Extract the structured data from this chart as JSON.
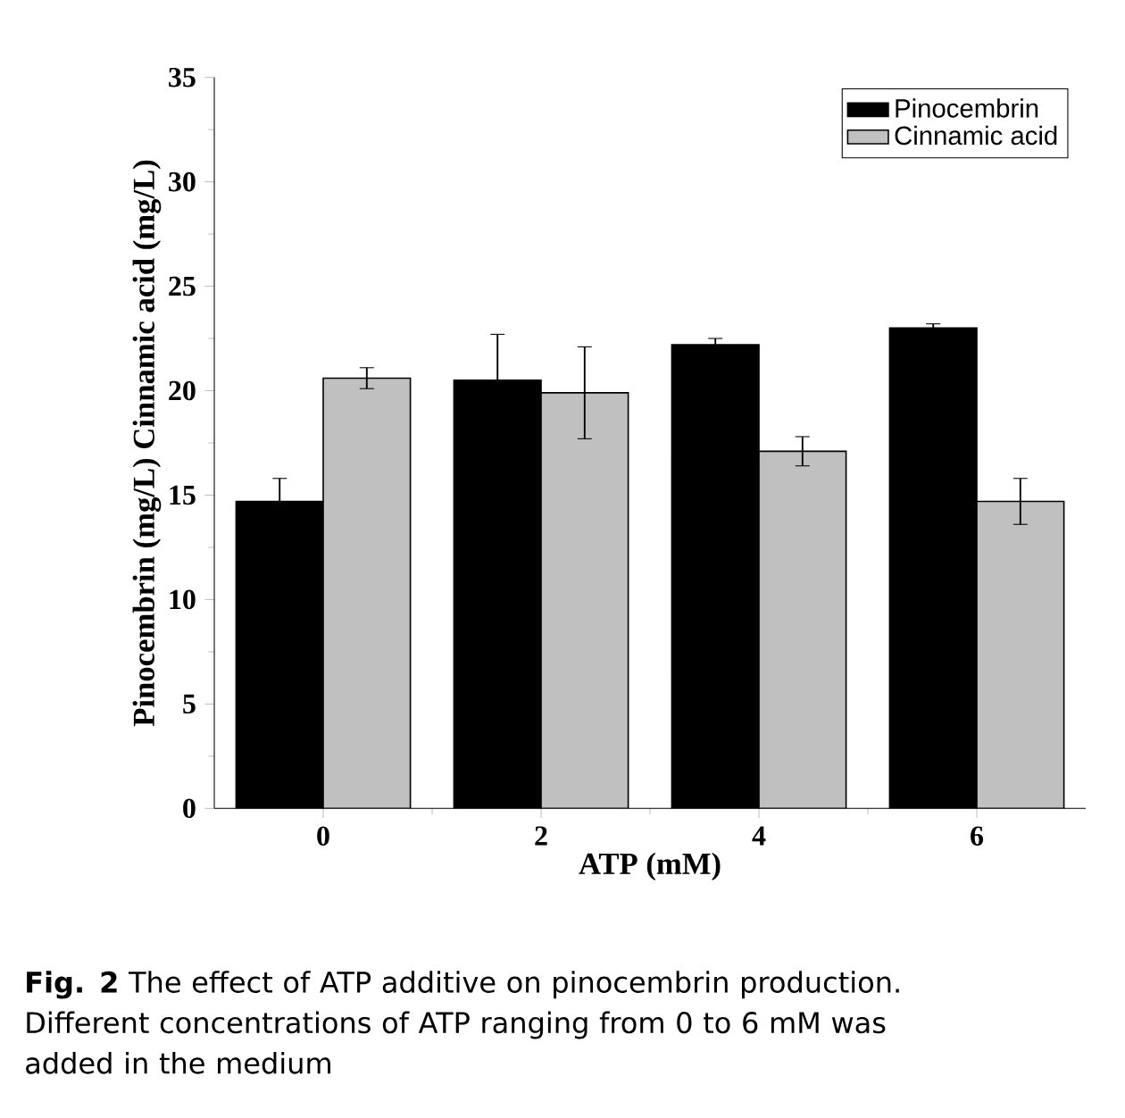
{
  "chart_data": {
    "type": "bar",
    "xlabel": "ATP (mM)",
    "ylabel": "Pinocembrin (mg/L) Cinnamic acid (mg/L)",
    "categories": [
      "0",
      "2",
      "4",
      "6"
    ],
    "series": [
      {
        "name": "Pinocembrin",
        "color": "#000000",
        "values": [
          14.7,
          20.5,
          22.2,
          23.0
        ],
        "errors": [
          1.1,
          2.2,
          0.3,
          0.2
        ]
      },
      {
        "name": "Cinnamic acid",
        "color": "#c0c0c0",
        "values": [
          20.6,
          19.9,
          17.1,
          14.7
        ],
        "errors": [
          0.5,
          2.2,
          0.7,
          1.1
        ]
      }
    ],
    "ylim": [
      0,
      35
    ],
    "yticks": [
      0,
      5,
      10,
      15,
      20,
      25,
      30,
      35
    ],
    "legend": "top right",
    "annotations": [
      "**Fig. 2** The effect of ATP additive on pinocembrin production. Different concentrations of ATP ranging from 0 to 6 mM was added in the medium"
    ]
  }
}
